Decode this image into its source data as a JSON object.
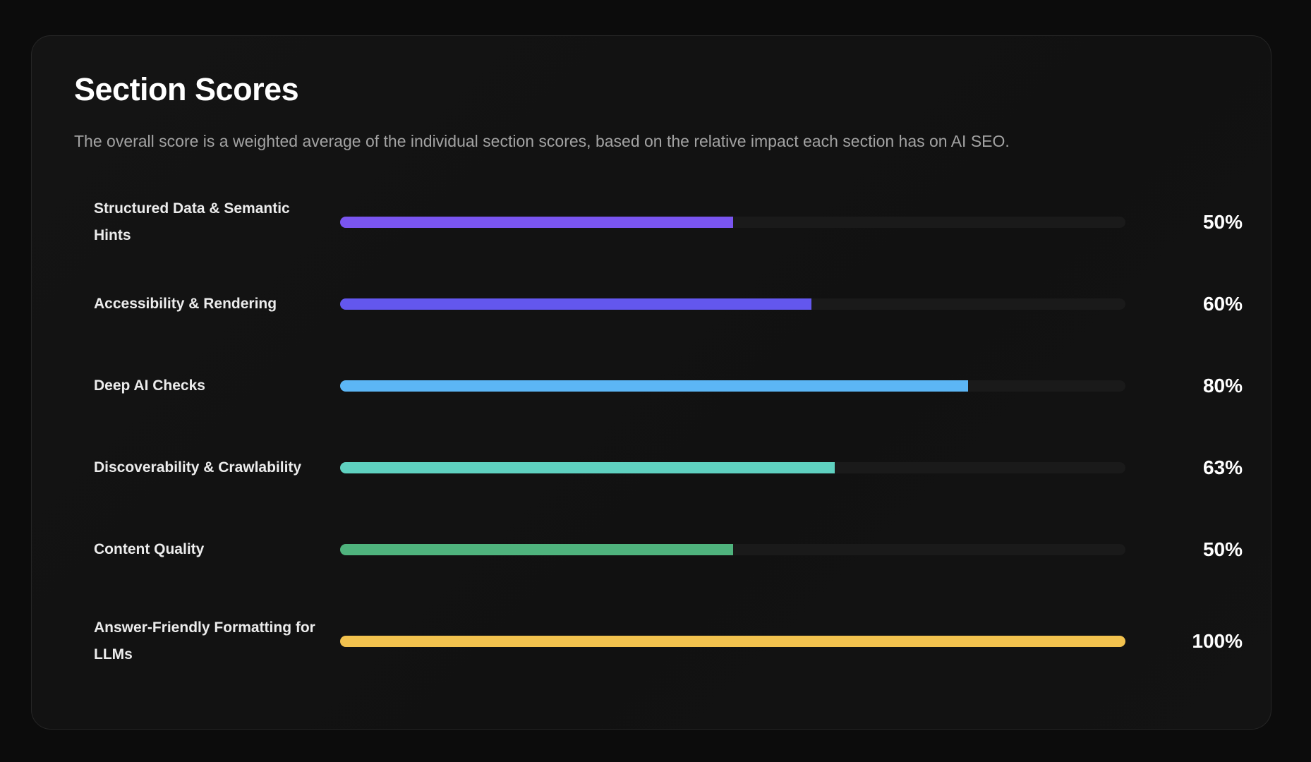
{
  "header": {
    "title": "Section Scores",
    "subtitle": "The overall score is a weighted average of the individual section scores, based on the relative impact each section has on AI SEO."
  },
  "chart_data": {
    "type": "bar",
    "orientation": "horizontal",
    "title": "Section Scores",
    "xlim": [
      0,
      100
    ],
    "grid": false,
    "categories": [
      "Structured Data & Semantic Hints",
      "Accessibility & Rendering",
      "Deep AI Checks",
      "Discoverability & Crawlability",
      "Content Quality",
      "Answer-Friendly Formatting for LLMs"
    ],
    "values": [
      50,
      60,
      80,
      63,
      50,
      100
    ],
    "value_labels": [
      "50%",
      "60%",
      "80%",
      "63%",
      "50%",
      "100%"
    ],
    "colors": [
      "#7a55f0",
      "#6357ee",
      "#5cb6f5",
      "#5fd1c0",
      "#4fb37d",
      "#f2c24e"
    ],
    "track_color": "#1a1a1a"
  }
}
